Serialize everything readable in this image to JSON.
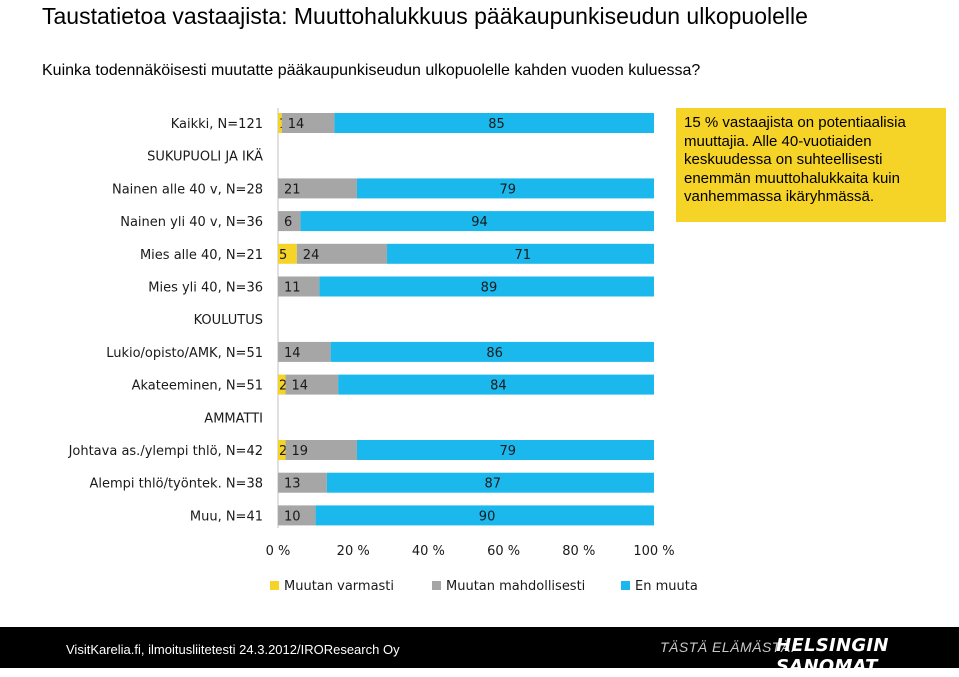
{
  "page": {
    "title": "Taustatietoa vastaajista: Muuttohalukkuus pääkaupunkiseudun ulkopuolelle",
    "subtitle": "Kuinka todennäköisesti muutatte pääkaupunkiseudun ulkopuolelle kahden vuoden kuluessa?"
  },
  "note": {
    "text": "15 % vastaajista on potentiaalisia muuttajia. Alle 40-vuotiaiden keskuudessa on suhteellisesti enemmän muuttohalukkaita kuin vanhemmassa ikäryhmässä."
  },
  "footer": {
    "source": "VisitKarelia.fi, ilmoitusliitetesti 24.3.2012/IROResearch Oy",
    "slogan": "TÄSTÄ ELÄMÄSTÄ.",
    "logo": "HELSINGIN SANOMAT"
  },
  "chart_data": {
    "type": "bar",
    "orientation": "horizontal",
    "stacked": true,
    "xlim": [
      0,
      100
    ],
    "xticks": [
      "0 %",
      "20 %",
      "40 %",
      "60 %",
      "80 %",
      "100 %"
    ],
    "categories": [
      "Kaikki, N=121",
      "SUKUPUOLI JA IKÄ",
      "Nainen alle 40 v, N=28",
      "Nainen yli 40 v, N=36",
      "Mies alle 40, N=21",
      "Mies yli 40, N=36",
      "KOULUTUS",
      "Lukio/opisto/AMK, N=51",
      "Akateeminen, N=51",
      "AMMATTI",
      "Johtava as./ylempi thlö, N=42",
      "Alempi thlö/työntek. N=38",
      "Muu, N=41"
    ],
    "series": [
      {
        "name": "Muutan varmasti",
        "color": "#f6d327",
        "values": [
          1,
          null,
          0,
          0,
          5,
          0,
          null,
          0,
          2,
          null,
          2,
          0,
          0
        ],
        "labels": [
          "1",
          "",
          "",
          "",
          "5",
          "",
          "",
          "",
          "2",
          "",
          "2",
          "",
          ""
        ]
      },
      {
        "name": "Muutan mahdollisesti",
        "color": "#a6a6a6",
        "values": [
          14,
          null,
          21,
          6,
          24,
          11,
          null,
          14,
          14,
          null,
          19,
          13,
          10
        ],
        "labels": [
          "14",
          "",
          "21",
          "6",
          "24",
          "11",
          "",
          "14",
          "14",
          "",
          "19",
          "13",
          "10"
        ]
      },
      {
        "name": "En muuta",
        "color": "#1ab8ec",
        "values": [
          85,
          null,
          79,
          94,
          71,
          89,
          null,
          86,
          84,
          null,
          79,
          87,
          90
        ],
        "labels": [
          "85",
          "",
          "79",
          "94",
          "71",
          "89",
          "",
          "86",
          "84",
          "",
          "79",
          "87",
          "90"
        ]
      }
    ],
    "legend_position": "bottom",
    "grid": false
  }
}
